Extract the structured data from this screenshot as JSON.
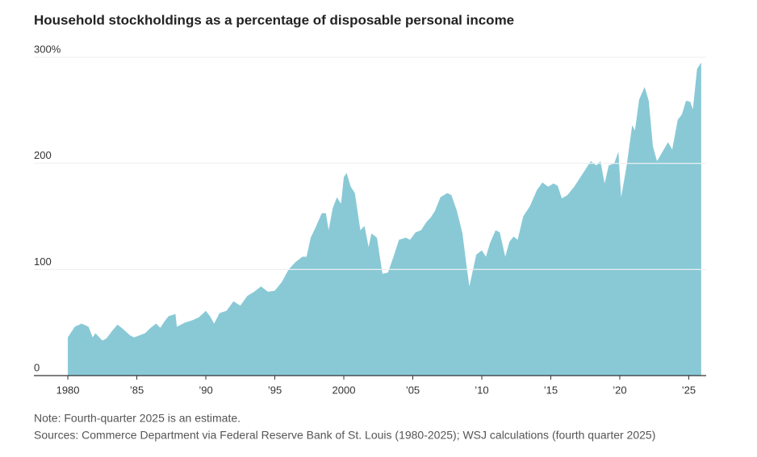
{
  "chart_data": {
    "type": "area",
    "title": "Household stockholdings as a percentage of disposable personal income",
    "note": "Note: Fourth-quarter 2025 is an estimate.",
    "source": "Sources: Commerce Department via Federal Reserve Bank of St. Louis (1980-2025); WSJ calculations (fourth quarter 2025)",
    "color": "#89c9d6",
    "grid": true,
    "xlim": [
      1977.54,
      2026.26
    ],
    "ylim": [
      0,
      300
    ],
    "yticks": [
      0,
      100,
      200,
      {
        "value": 300,
        "label": "300%"
      }
    ],
    "xticks": [
      {
        "value": 1980,
        "label": "1980"
      },
      {
        "value": 1985,
        "label": "’85"
      },
      {
        "value": 1990,
        "label": "’90"
      },
      {
        "value": 1995,
        "label": "’95"
      },
      {
        "value": 2000,
        "label": "2000"
      },
      {
        "value": 2005,
        "label": "’05"
      },
      {
        "value": 2010,
        "label": "’10"
      },
      {
        "value": 2015,
        "label": "’15"
      },
      {
        "value": 2020,
        "label": "’20"
      },
      {
        "value": 2025,
        "label": "’25"
      }
    ],
    "x": [
      1980,
      1980.5,
      1981,
      1981.5,
      1981.8,
      1982,
      1982.5,
      1982.8,
      1983.2,
      1983.6,
      1984,
      1984.5,
      1984.8,
      1985.2,
      1985.6,
      1986,
      1986.4,
      1986.7,
      1987,
      1987.3,
      1987.8,
      1987.9,
      1988.5,
      1989,
      1989.5,
      1990,
      1990.3,
      1990.6,
      1991,
      1991.5,
      1992,
      1992.5,
      1993,
      1993.5,
      1994,
      1994.5,
      1995,
      1995.5,
      1996,
      1996.5,
      1997,
      1997.3,
      1997.6,
      1998,
      1998.4,
      1998.7,
      1998.9,
      1999.2,
      1999.5,
      1999.8,
      2000,
      2000.2,
      2000.5,
      2000.8,
      2001.2,
      2001.5,
      2001.8,
      2002,
      2002.4,
      2002.8,
      2003.2,
      2003.6,
      2004,
      2004.5,
      2004.8,
      2005.2,
      2005.6,
      2006,
      2006.3,
      2006.6,
      2007,
      2007.5,
      2007.8,
      2008.2,
      2008.6,
      2008.9,
      2009.1,
      2009.3,
      2009.6,
      2010,
      2010.3,
      2010.6,
      2011,
      2011.3,
      2011.7,
      2012,
      2012.3,
      2012.6,
      2013,
      2013.5,
      2014,
      2014.4,
      2014.8,
      2015.2,
      2015.5,
      2015.8,
      2016.2,
      2016.7,
      2017.2,
      2017.6,
      2017.9,
      2018.3,
      2018.6,
      2018.9,
      2019.2,
      2019.6,
      2019.9,
      2020.1,
      2020.5,
      2020.9,
      2021.1,
      2021.4,
      2021.8,
      2022.1,
      2022.4,
      2022.7,
      2023.1,
      2023.5,
      2023.8,
      2024.2,
      2024.5,
      2024.8,
      2025.1,
      2025.3,
      2025.6,
      2025.9
    ],
    "values": [
      36,
      46,
      49,
      46,
      36,
      40,
      33,
      35,
      42,
      48,
      44,
      38,
      36,
      38,
      40,
      45,
      49,
      45,
      51,
      56,
      58,
      46,
      50,
      52,
      55,
      61,
      56,
      49,
      59,
      61,
      70,
      66,
      75,
      79,
      84,
      79,
      80,
      88,
      100,
      107,
      112,
      112,
      130,
      141,
      153,
      153,
      137,
      158,
      168,
      162,
      187,
      191,
      178,
      172,
      137,
      141,
      121,
      134,
      130,
      96,
      97,
      112,
      128,
      130,
      128,
      135,
      137,
      145,
      149,
      155,
      168,
      172,
      170,
      155,
      134,
      103,
      84,
      96,
      114,
      118,
      112,
      125,
      137,
      135,
      112,
      126,
      131,
      128,
      150,
      160,
      175,
      182,
      178,
      181,
      179,
      167,
      170,
      178,
      188,
      196,
      202,
      198,
      202,
      181,
      198,
      200,
      211,
      168,
      198,
      236,
      231,
      260,
      272,
      259,
      216,
      202,
      211,
      220,
      213,
      241,
      246,
      259,
      258,
      251,
      289,
      295
    ]
  }
}
